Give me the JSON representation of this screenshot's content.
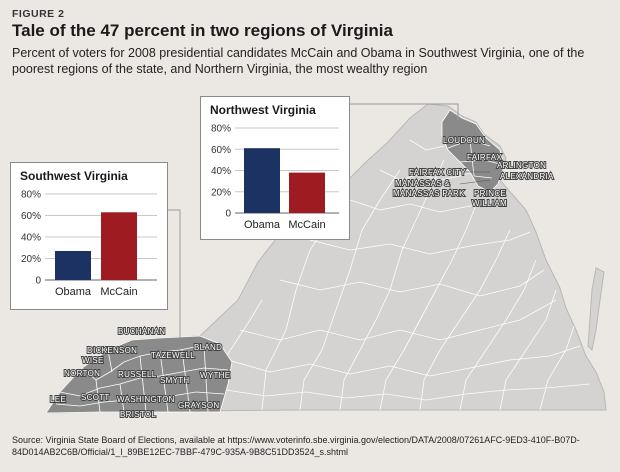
{
  "figure_label": "FIGURE 2",
  "title": "Tale of the 47 percent in two regions of Virginia",
  "subtitle": "Percent of voters for 2008 presidential candidates McCain and Obama in Southwest Virginia, one of the poorest regions of the state, and Northern Virginia, the most wealthy region",
  "source": "Source: Virginia State Board of Elections, available at https://www.voterinfo.sbe.virginia.gov/election/DATA/2008/07261AFC-9ED3-410F-B07D-84D014AB2C6B/Official/1_l_89BE12EC-7BBF-479C-935A-9B8C51DD3524_s.shtml",
  "colors": {
    "obama": "#1b3263",
    "mccain": "#9d1b21",
    "state_fill": "#d4d3d1",
    "highlight_fill": "#8a8a8a",
    "county_line": "#ffffff"
  },
  "chart_data": [
    {
      "type": "bar",
      "title": "Southwest Virginia",
      "categories": [
        "Obama",
        "McCain"
      ],
      "values": [
        27,
        63
      ],
      "ylim": [
        0,
        80
      ],
      "yticks": [
        "0",
        "20%",
        "40%",
        "60%",
        "80%"
      ]
    },
    {
      "type": "bar",
      "title": "Northwest Virginia",
      "categories": [
        "Obama",
        "McCain"
      ],
      "values": [
        61,
        38
      ],
      "ylim": [
        0,
        80
      ],
      "yticks": [
        "0",
        "20%",
        "40%",
        "60%",
        "80%"
      ]
    }
  ],
  "map_labels": {
    "southwest": [
      "BUCHANAN",
      "DICKENSON",
      "TAZEWELL",
      "BLAND",
      "WISE",
      "RUSSELL",
      "NORTON",
      "SMYTH",
      "WYTHE",
      "LEE",
      "SCOTT",
      "WASHINGTON",
      "BRISTOL",
      "GRAYSON"
    ],
    "northern": [
      "LOUDOUN",
      "FAIRFAX",
      "ARLINGTON",
      "FAIRFAX CITY",
      "ALEXANDRIA",
      "MANASSAS &",
      "MANASSAS PARK",
      "PRINCE",
      "WILLIAM"
    ]
  }
}
